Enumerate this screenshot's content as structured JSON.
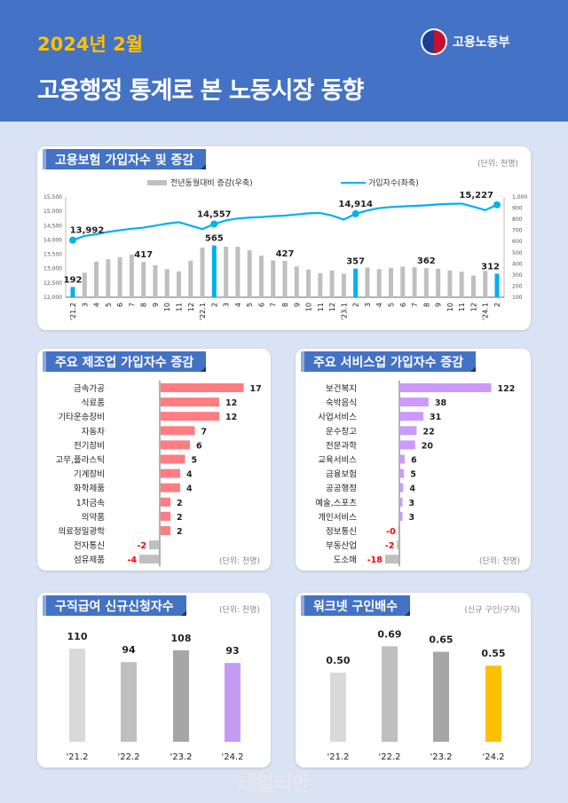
{
  "header": {
    "year": "2024년 2월",
    "title": "고용행정 통계로 본 노동시장 동향",
    "ministry": "고용노동부"
  },
  "watermark": "데일리안",
  "chart_data": [
    {
      "type": "bar+line",
      "title": "고용보험 가입자수 및 증감",
      "unit": "(단위: 천명)",
      "legend": {
        "bars": "전년동월대비 증감(우축)",
        "line": "가입자수(좌축)",
        "placement": "top"
      },
      "categories": [
        "'21.2",
        "3",
        "4",
        "5",
        "6",
        "7",
        "8",
        "9",
        "10",
        "11",
        "12",
        "'22.1",
        "2",
        "3",
        "4",
        "5",
        "6",
        "7",
        "8",
        "9",
        "10",
        "11",
        "12",
        "'23.1",
        "2",
        "3",
        "4",
        "5",
        "6",
        "7",
        "8",
        "9",
        "10",
        "11",
        "12",
        "'24.1",
        "2"
      ],
      "left_axis": {
        "ylim": [
          12000,
          15500
        ],
        "ticks": [
          "12,000",
          "12,500",
          "13,000",
          "13,500",
          "14,000",
          "14,500",
          "15,000",
          "15,500"
        ]
      },
      "right_axis": {
        "ylim": [
          100,
          1000
        ],
        "ticks": [
          "100",
          "200",
          "300",
          "400",
          "500",
          "600",
          "700",
          "800",
          "900",
          "1,000"
        ]
      },
      "series": [
        {
          "name": "전년동월대비 증감(우축)",
          "type": "bar",
          "axis": "right",
          "color": "#bfbfbf",
          "highlight_color": "#00b0f0",
          "values": [
            192,
            320,
            420,
            441,
            460,
            484,
            417,
            388,
            353,
            332,
            428,
            545,
            565,
            553,
            553,
            521,
            473,
            431,
            427,
            376,
            348,
            316,
            340,
            313,
            357,
            367,
            353,
            364,
            375,
            369,
            362,
            356,
            340,
            329,
            295,
            337,
            312
          ],
          "labels": {
            "0": "192",
            "6": "417",
            "12": "565",
            "18": "427",
            "24": "357",
            "30": "362",
            "36": "312"
          },
          "highlighted": [
            0,
            12,
            24,
            36
          ]
        },
        {
          "name": "가입자수(좌축)",
          "type": "line",
          "axis": "left",
          "color": "#00b0f0",
          "values": [
            13992,
            14140,
            14200,
            14280,
            14340,
            14390,
            14430,
            14500,
            14570,
            14620,
            14500,
            14380,
            14557,
            14680,
            14750,
            14780,
            14800,
            14830,
            14850,
            14890,
            14930,
            14940,
            14850,
            14710,
            14914,
            15030,
            15110,
            15150,
            15170,
            15190,
            15210,
            15240,
            15260,
            15270,
            15160,
            15040,
            15227
          ],
          "labels": {
            "0": "13,992",
            "12": "14,557",
            "24": "14,914",
            "36": "15,227"
          }
        }
      ]
    },
    {
      "type": "bar",
      "orientation": "horizontal",
      "title": "주요 제조업 가입자수 증감",
      "unit": "(단위: 천명)",
      "color": "#ff7c80",
      "negative_color": "#bfbfbf",
      "categories": [
        "금속가공",
        "식료품",
        "기타운송장비",
        "자동차",
        "전기장비",
        "고무,플라스틱",
        "기계장비",
        "화학제품",
        "1차금속",
        "의약품",
        "의료정밀광학",
        "전자통신",
        "섬유제품"
      ],
      "values": [
        17,
        12,
        12,
        7,
        6,
        5,
        4,
        4,
        2,
        2,
        2,
        -2,
        -4
      ],
      "labels": [
        "17",
        "12",
        "12",
        "7",
        "6",
        "5",
        "4",
        "4",
        "2",
        "2",
        "2",
        "-2",
        "-4"
      ]
    },
    {
      "type": "bar",
      "orientation": "horizontal",
      "title": "주요 서비스업 가입자수 증감",
      "unit": "(단위: 천명)",
      "color": "#cc99ff",
      "negative_color": "#bfbfbf",
      "categories": [
        "보건복지",
        "숙박음식",
        "사업서비스",
        "운수창고",
        "전문과학",
        "교육서비스",
        "금융보험",
        "공공행정",
        "예술,스포츠",
        "개인서비스",
        "정보통신",
        "부동산업",
        "도소매"
      ],
      "values": [
        122,
        38,
        31,
        22,
        20,
        6,
        5,
        4,
        3,
        3,
        -0.3,
        -2,
        -18
      ],
      "labels": [
        "122",
        "38",
        "31",
        "22",
        "20",
        "6",
        "5",
        "4",
        "3",
        "3",
        "-0",
        "-2",
        "-18"
      ]
    },
    {
      "type": "bar",
      "title": "구직급여 신규신청자수",
      "unit": "(단위: 천명)",
      "categories": [
        "'21.2",
        "'22.2",
        "'23.2",
        "'24.2"
      ],
      "values": [
        110,
        94,
        108,
        93
      ],
      "labels": [
        "110",
        "94",
        "108",
        "93"
      ],
      "colors": [
        "#d9d9d9",
        "#bfbfbf",
        "#a6a6a6",
        "#c39bf5"
      ],
      "ylim": [
        0,
        120
      ]
    },
    {
      "type": "bar",
      "title": "워크넷 구인배수",
      "unit": "(신규 구인/구직)",
      "categories": [
        "'21.2",
        "'22.2",
        "'23.2",
        "'24.2"
      ],
      "values": [
        0.5,
        0.69,
        0.65,
        0.55
      ],
      "labels": [
        "0.50",
        "0.69",
        "0.65",
        "0.55"
      ],
      "colors": [
        "#d9d9d9",
        "#bfbfbf",
        "#a6a6a6",
        "#ffc000"
      ],
      "ylim": [
        0,
        0.75
      ]
    }
  ]
}
